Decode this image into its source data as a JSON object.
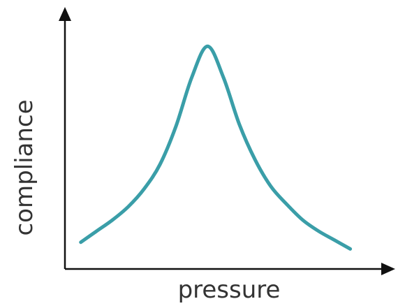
{
  "chart_data": {
    "type": "line",
    "title": "",
    "xlabel": "pressure",
    "ylabel": "compliance",
    "x": [
      0.05,
      0.1,
      0.15,
      0.2,
      0.25,
      0.3,
      0.35,
      0.4,
      0.45,
      0.5,
      0.55,
      0.6,
      0.65,
      0.7,
      0.75,
      0.8,
      0.85,
      0.9
    ],
    "series": [
      {
        "values": [
          0.12,
          0.17,
          0.22,
          0.28,
          0.36,
          0.47,
          0.64,
          0.86,
          1.0,
          0.86,
          0.65,
          0.49,
          0.37,
          0.29,
          0.22,
          0.17,
          0.13,
          0.09
        ]
      }
    ],
    "xlim": [
      0,
      1
    ],
    "ylim": [
      0,
      1.12
    ],
    "grid": false,
    "ticks": false,
    "line_color": "#3a9ea8"
  }
}
